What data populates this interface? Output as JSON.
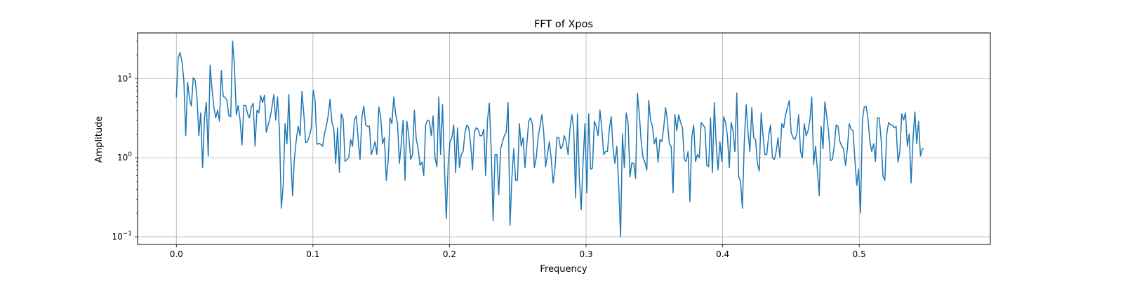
{
  "chart_data": {
    "type": "line",
    "title": "FFT of Xpos",
    "xlabel": "Frequency",
    "ylabel": "Amplitude",
    "xlim": [
      -0.0284,
      0.596
    ],
    "ylim": [
      0.08,
      38
    ],
    "yscale": "log",
    "grid": true,
    "line_color": "#1f77b4",
    "x_ticks": [
      {
        "value": 0.0,
        "label": "0.0"
      },
      {
        "value": 0.1,
        "label": "0.1"
      },
      {
        "value": 0.2,
        "label": "0.2"
      },
      {
        "value": 0.3,
        "label": "0.3"
      },
      {
        "value": 0.4,
        "label": "0.4"
      },
      {
        "value": 0.5,
        "label": "0.5"
      }
    ],
    "y_ticks": [
      {
        "value": 0.1,
        "base": "10",
        "exp": "−1"
      },
      {
        "value": 1,
        "base": "10",
        "exp": "0"
      },
      {
        "value": 10,
        "base": "10",
        "exp": "1"
      }
    ],
    "series": [
      {
        "x0": 0.0,
        "dx": 0.0013724,
        "values": [
          5.8,
          18.5,
          21.5,
          16.5,
          9.5,
          1.9,
          9.0,
          5.6,
          4.5,
          10.3,
          9.6,
          5.8,
          1.9,
          3.7,
          0.75,
          3.2,
          5.0,
          1.05,
          14.8,
          7.5,
          4.4,
          3.2,
          4.0,
          2.9,
          12.7,
          6.0,
          5.8,
          5.3,
          3.4,
          3.3,
          30.0,
          14.0,
          3.5,
          4.6,
          3.0,
          1.45,
          4.6,
          4.6,
          3.6,
          3.2,
          4.4,
          4.9,
          1.4,
          4.0,
          3.7,
          6.1,
          5.0,
          6.2,
          2.1,
          2.6,
          3.2,
          4.4,
          6.3,
          3.0,
          5.9,
          2.2,
          0.23,
          0.45,
          2.7,
          1.5,
          6.3,
          1.1,
          0.33,
          1.0,
          1.7,
          2.5,
          1.9,
          6.9,
          3.6,
          1.55,
          1.6,
          1.9,
          2.4,
          7.2,
          5.3,
          1.48,
          1.52,
          1.48,
          1.4,
          2.0,
          2.5,
          3.4,
          5.5,
          2.8,
          2.3,
          0.85,
          2.4,
          0.65,
          3.6,
          3.1,
          0.9,
          0.95,
          1.0,
          1.7,
          1.4,
          3.0,
          3.4,
          1.7,
          0.95,
          3.3,
          4.5,
          2.6,
          2.5,
          2.5,
          1.1,
          1.3,
          1.6,
          1.1,
          4.4,
          3.3,
          1.5,
          1.8,
          0.52,
          0.9,
          3.2,
          2.7,
          5.9,
          3.6,
          2.7,
          0.85,
          1.5,
          3.0,
          0.52,
          2.9,
          1.9,
          0.95,
          1.1,
          4.0,
          1.7,
          1.3,
          0.8,
          0.88,
          0.6,
          2.6,
          3.0,
          2.9,
          1.9,
          3.4,
          1.0,
          0.77,
          5.9,
          1.1,
          4.7,
          0.8,
          0.17,
          0.8,
          1.6,
          1.8,
          2.6,
          0.65,
          2.4,
          0.75,
          1.1,
          1.2,
          2.1,
          2.6,
          2.4,
          1.5,
          0.7,
          2.1,
          2.4,
          2.3,
          1.9,
          1.9,
          2.3,
          0.6,
          3.0,
          4.9,
          1.2,
          0.16,
          1.1,
          1.1,
          0.34,
          1.3,
          1.6,
          1.9,
          2.1,
          5.0,
          0.14,
          0.55,
          1.3,
          0.52,
          0.52,
          2.7,
          1.4,
          1.8,
          0.75,
          1.5,
          2.9,
          3.2,
          2.6,
          0.75,
          1.0,
          1.8,
          2.5,
          3.5,
          2.1,
          0.77,
          1.1,
          1.6,
          0.97,
          0.48,
          0.73,
          1.8,
          1.8,
          1.3,
          1.4,
          1.9,
          1.6,
          1.1,
          2.3,
          3.5,
          2.3,
          0.31,
          3.6,
          0.55,
          0.22,
          0.9,
          2.7,
          0.36,
          3.6,
          0.72,
          0.74,
          2.9,
          2.5,
          1.9,
          4.0,
          2.3,
          1.1,
          1.2,
          1.2,
          2.3,
          3.3,
          1.3,
          0.85,
          1.4,
          0.45,
          0.1,
          2.0,
          0.75,
          3.7,
          2.8,
          0.57,
          0.86,
          0.85,
          0.55,
          6.5,
          3.5,
          1.6,
          1.0,
          0.87,
          0.7,
          5.3,
          3.0,
          2.5,
          1.5,
          1.8,
          0.88,
          1.7,
          1.6,
          2.4,
          4.3,
          2.9,
          1.5,
          1.4,
          0.36,
          3.5,
          2.2,
          3.5,
          2.8,
          2.4,
          0.95,
          0.9,
          1.2,
          0.28,
          1.8,
          2.6,
          0.9,
          1.1,
          1.0,
          2.8,
          2.6,
          2.4,
          0.8,
          0.77,
          3.2,
          0.65,
          5.0,
          1.5,
          0.7,
          1.6,
          0.9,
          3.3,
          2.8,
          1.9,
          0.75,
          2.8,
          2.2,
          1.2,
          6.6,
          0.58,
          0.5,
          0.23,
          1.6,
          4.7,
          2.1,
          1.2,
          4.3,
          1.8,
          1.7,
          0.85,
          0.68,
          3.7,
          1.9,
          1.1,
          1.1,
          1.9,
          2.6,
          1.0,
          0.95,
          1.2,
          1.8,
          1.0,
          2.7,
          2.4,
          3.5,
          4.3,
          5.3,
          2.1,
          1.8,
          1.7,
          2.0,
          3.5,
          1.2,
          1.0,
          2.7,
          1.9,
          2.2,
          3.0,
          5.9,
          0.82,
          1.4,
          0.7,
          0.33,
          2.5,
          1.3,
          5.1,
          3.3,
          2.1,
          0.92,
          0.95,
          1.4,
          2.6,
          2.5,
          1.6,
          1.4,
          1.3,
          0.8,
          1.3,
          2.7,
          2.3,
          2.2,
          0.95,
          0.45,
          0.72,
          0.2,
          3.0,
          4.4,
          4.5,
          3.1,
          1.6,
          1.2,
          1.5,
          0.9,
          3.2,
          3.2,
          1.7,
          0.58,
          0.52,
          2.0,
          2.8,
          2.6,
          2.6,
          2.4,
          2.5,
          0.88,
          1.2,
          3.6,
          3.0,
          3.7,
          1.4,
          2.0,
          0.48,
          1.7,
          3.8,
          1.5,
          2.9,
          1.05,
          1.3,
          1.3
        ]
      }
    ]
  }
}
